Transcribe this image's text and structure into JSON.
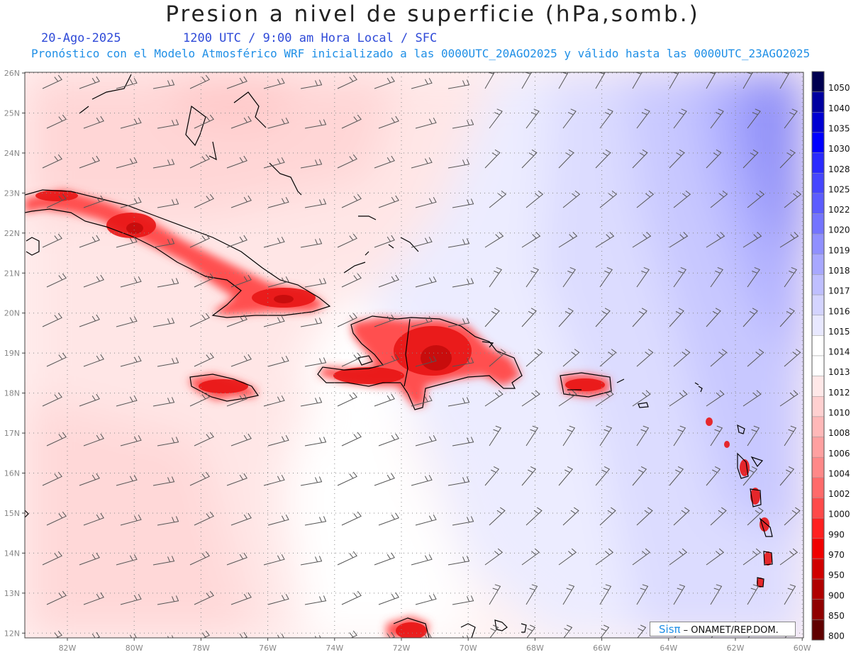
{
  "header": {
    "title": "Presion a nivel de superficie (hPa,somb.)",
    "date": "20-Ago-2025",
    "time": "1200 UTC / 9:00 am Hora Local / SFC",
    "forecast": "Pronóstico con el Modelo Atmosférico WRF inicializado a las 0000UTC_20AGO2025 y válido hasta las  0000UTC_23AGO2025"
  },
  "lon_labels": [
    "82W",
    "80W",
    "78W",
    "76W",
    "74W",
    "72W",
    "70W",
    "68W",
    "66W",
    "64W",
    "62W",
    "60W"
  ],
  "lat_labels": [
    "26N",
    "25N",
    "24N",
    "23N",
    "22N",
    "21N",
    "20N",
    "19N",
    "18N",
    "17N",
    "16N",
    "15N",
    "14N",
    "13N",
    "12N"
  ],
  "legend": {
    "levels": [
      "1050",
      "1040",
      "1035",
      "1030",
      "1028",
      "1025",
      "1022",
      "1020",
      "1019",
      "1018",
      "1017",
      "1016",
      "1015",
      "1014",
      "1013",
      "1012",
      "1010",
      "1008",
      "1006",
      "1004",
      "1002",
      "1000",
      "990",
      "970",
      "950",
      "900",
      "850",
      "800"
    ],
    "colors": [
      "#000050",
      "#0000a0",
      "#0000d2",
      "#0000ff",
      "#2a2aff",
      "#4646ff",
      "#5c5cff",
      "#7474ff",
      "#9090ff",
      "#a8a8ff",
      "#bfbfff",
      "#d4d4ff",
      "#e8e8ff",
      "#ffffff",
      "#ffffff",
      "#ffe8e8",
      "#ffd0d0",
      "#ffb8b8",
      "#ffa0a0",
      "#ff8888",
      "#ff6a6a",
      "#ff4a4a",
      "#ff2020",
      "#f00000",
      "#d00000",
      "#b00000",
      "#900000",
      "#600000"
    ]
  },
  "credit": {
    "brand": "Sisπ",
    "org": " – ONAMET/REP.DOM."
  }
}
